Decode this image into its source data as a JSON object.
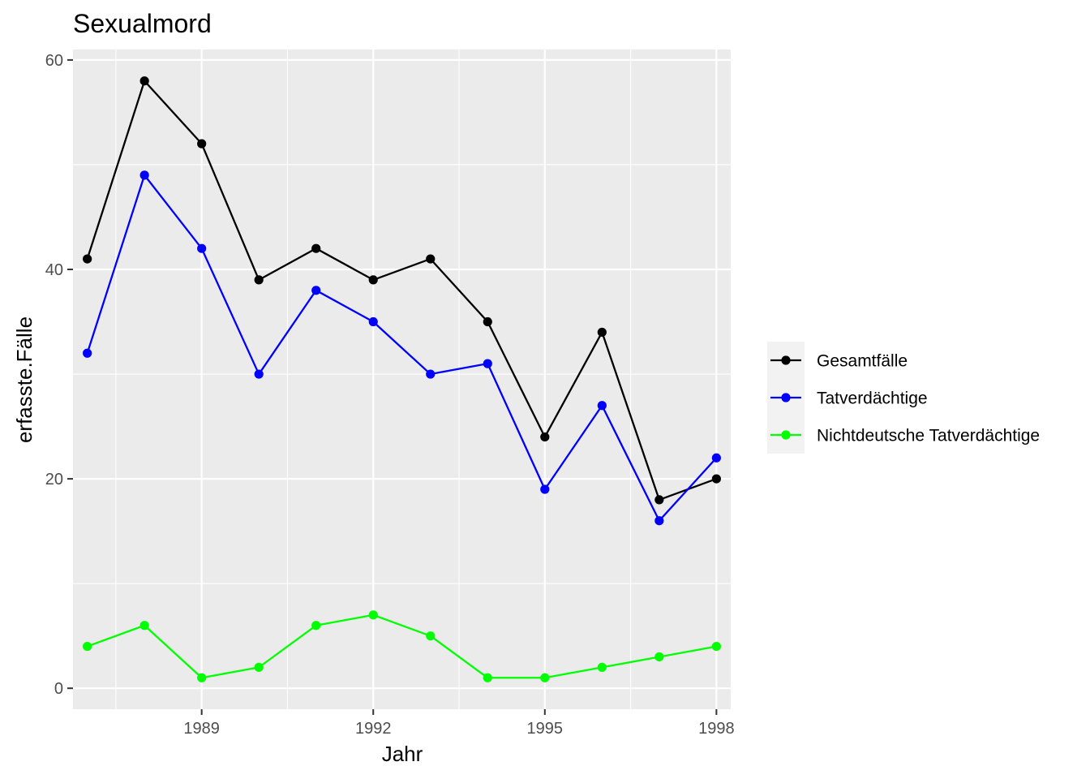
{
  "chart_data": {
    "type": "line",
    "title": "Sexualmord",
    "xlabel": "Jahr",
    "ylabel": "erfasste.Fälle",
    "x": [
      1987,
      1988,
      1989,
      1990,
      1991,
      1992,
      1993,
      1994,
      1995,
      1996,
      1997,
      1998
    ],
    "xlim": [
      1986.75,
      1998.25
    ],
    "ylim": [
      -2,
      61
    ],
    "x_major_ticks": [
      1989,
      1992,
      1995,
      1998
    ],
    "x_minor_ticks": [
      1987.5,
      1990.5,
      1993.5,
      1996.5
    ],
    "y_major_ticks": [
      0,
      20,
      40,
      60
    ],
    "y_minor_ticks": [
      10,
      30,
      50
    ],
    "grid": true,
    "legend_position": "right",
    "series": [
      {
        "name": "Gesamtfälle",
        "color": "#000000",
        "values": [
          41,
          58,
          52,
          39,
          42,
          39,
          41,
          35,
          24,
          34,
          18,
          20
        ]
      },
      {
        "name": "Tatverdächtige",
        "color": "#0000ff",
        "values": [
          32,
          49,
          42,
          30,
          38,
          35,
          30,
          31,
          19,
          27,
          16,
          22
        ]
      },
      {
        "name": "Nichtdeutsche Tatverdächtige",
        "color": "#00ff00",
        "values": [
          4,
          6,
          1,
          2,
          6,
          7,
          5,
          1,
          1,
          2,
          3,
          4
        ]
      }
    ]
  }
}
